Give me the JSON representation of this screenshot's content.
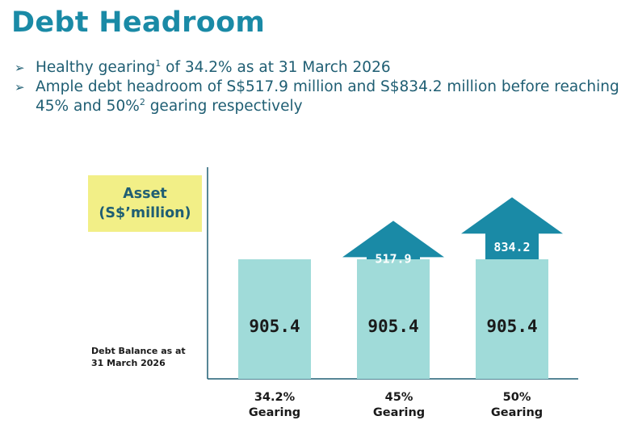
{
  "title": "Debt Headroom",
  "bullets": [
    {
      "pre": "Healthy gearing",
      "sup": "1",
      "post": " of 34.2% as at 31 March 2026"
    },
    {
      "pre": "Ample debt headroom of S$517.9 million and S$834.2 million before reaching 45% and 50%",
      "sup": "2",
      "post": " gearing respectively"
    }
  ],
  "asset_label": {
    "line1": "Asset",
    "line2": "(S$’million)"
  },
  "debt_note": {
    "line1": "Debt Balance as at",
    "line2": "31 March 2026"
  },
  "x_labels": [
    {
      "line1": "34.2%",
      "line2": "Gearing"
    },
    {
      "line1": "45%",
      "line2": "Gearing"
    },
    {
      "line1": "50%",
      "line2": "Gearing"
    }
  ],
  "colors": {
    "title": "#1a8aa6",
    "text": "#1f5e73",
    "bar": "#a0dbd9",
    "arrow": "#1a8aa6",
    "asset_box": "#f2ef87",
    "axis": "#1f5e73"
  },
  "chart_data": {
    "type": "bar",
    "stacked": true,
    "categories": [
      "34.2% Gearing",
      "45% Gearing",
      "50% Gearing"
    ],
    "series": [
      {
        "values": [
          905.4,
          905.4,
          905.4
        ],
        "labels": [
          "905.4",
          "905.4",
          "905.4"
        ]
      },
      {
        "values": [
          0,
          517.9,
          834.2
        ],
        "labels": [
          "",
          "517.9",
          "834.2"
        ],
        "shape": "arrow"
      }
    ],
    "title": "",
    "ylabel": "Asset (S$’million)",
    "xlabel": "",
    "grid": false
  }
}
